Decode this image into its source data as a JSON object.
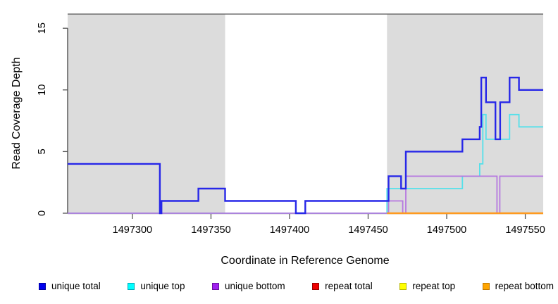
{
  "figure": {
    "xlabel": "Coordinate in Reference Genome",
    "ylabel": "Read Coverage Depth"
  },
  "chart_data": {
    "type": "line",
    "subtype": "step-coverage",
    "title": "",
    "xlabel": "Coordinate in Reference Genome",
    "ylabel": "Read Coverage Depth",
    "grid": false,
    "legend_position": "bottom",
    "x_range": [
      1497258.8,
      1497561.4
    ],
    "y_range": [
      0,
      16.15
    ],
    "x_ticks": [
      1497300,
      1497350,
      1497400,
      1497450,
      1497500,
      1497550
    ],
    "y_ticks": [
      0,
      5,
      10,
      15
    ],
    "shaded_regions": [
      {
        "start": 1497258.8,
        "end": 1497359,
        "color": "#dcdcdc"
      },
      {
        "start": 1497462,
        "end": 1497561.4,
        "color": "#dcdcdc"
      }
    ],
    "series": [
      {
        "name": "unique total",
        "color": "#2727e8",
        "legend_color": "#0000ee",
        "legend_border": "#0000a0",
        "width": 2.4,
        "points": [
          [
            1497258.8,
            4
          ],
          [
            1497317.5,
            0
          ],
          [
            1497318.5,
            1
          ],
          [
            1497342,
            2
          ],
          [
            1497359,
            1
          ],
          [
            1497404,
            0
          ],
          [
            1497410,
            1
          ],
          [
            1497463,
            3
          ],
          [
            1497471,
            2
          ],
          [
            1497474,
            5
          ],
          [
            1497510,
            6
          ],
          [
            1497521,
            7
          ],
          [
            1497522,
            11
          ],
          [
            1497525,
            9
          ],
          [
            1497531,
            6
          ],
          [
            1497534,
            9
          ],
          [
            1497540,
            11
          ],
          [
            1497546,
            10
          ],
          [
            1497561.4,
            10
          ]
        ]
      },
      {
        "name": "unique top",
        "color": "#54e0ea",
        "legend_color": "#00ffff",
        "legend_border": "#00a8b8",
        "width": 1.8,
        "points": [
          [
            1497258.8,
            0
          ],
          [
            1497462,
            2
          ],
          [
            1497510,
            3
          ],
          [
            1497521,
            4
          ],
          [
            1497523,
            8
          ],
          [
            1497525,
            6
          ],
          [
            1497540,
            8
          ],
          [
            1497546,
            7
          ],
          [
            1497561.4,
            7
          ]
        ]
      },
      {
        "name": "unique bottom",
        "color": "#b678e0",
        "legend_color": "#a020f0",
        "legend_border": "#6a10a0",
        "width": 1.8,
        "points": [
          [
            1497258.8,
            0
          ],
          [
            1497463,
            1
          ],
          [
            1497472,
            0
          ],
          [
            1497474,
            3
          ],
          [
            1497532,
            0
          ],
          [
            1497533.8,
            3
          ],
          [
            1497561.4,
            3
          ]
        ]
      },
      {
        "name": "repeat total",
        "color": "#e62626",
        "legend_color": "#ee0000",
        "legend_border": "#990000",
        "width": 1.8,
        "points": [
          [
            1497258.8,
            0
          ],
          [
            1497561.4,
            0
          ]
        ]
      },
      {
        "name": "repeat top",
        "color": "#f5f531",
        "legend_color": "#ffff00",
        "legend_border": "#b8b800",
        "width": 1.8,
        "points": [
          [
            1497258.8,
            0
          ],
          [
            1497561.4,
            0
          ]
        ]
      },
      {
        "name": "repeat bottom",
        "color": "#ff9a1f",
        "legend_color": "#ffa500",
        "legend_border": "#c07800",
        "width": 2.4,
        "points": [
          [
            1497462,
            0
          ],
          [
            1497561.4,
            0
          ]
        ]
      }
    ],
    "baseline_overlap_line": {
      "color": "#62c96e",
      "start": 1497258.8,
      "end": 1497462,
      "depth": 0,
      "width": 1.8
    }
  }
}
